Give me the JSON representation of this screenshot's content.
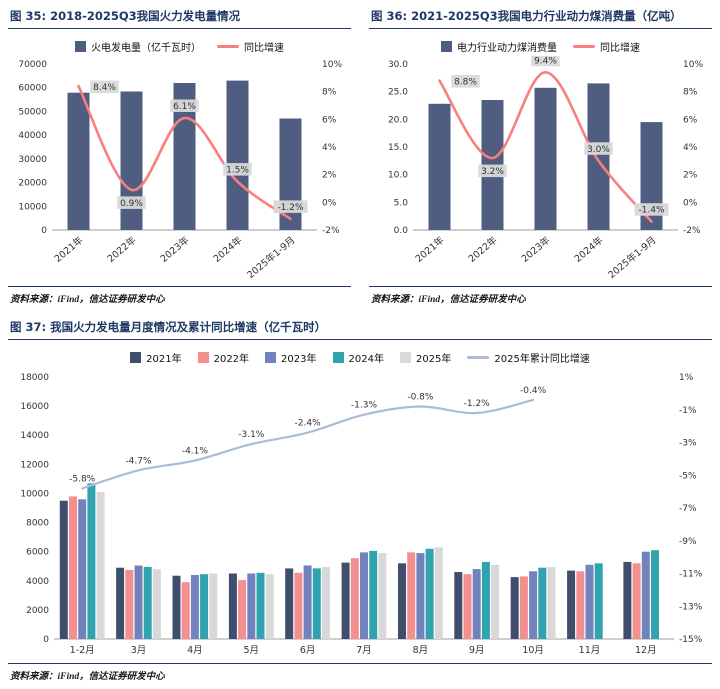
{
  "theme": {
    "title_color": "#1f3864",
    "rule_color": "#1f3864",
    "axis_text_color": "#333333",
    "value_label_bg": "#d9d9d9",
    "baseline_color": "#7f7f7f"
  },
  "panels": [
    {
      "id": "fig35",
      "title": "图 35: 2018-2025Q3我国火力发电量情况",
      "source": "资料来源：iFind，信达证券研发中心"
    },
    {
      "id": "fig36",
      "title": "图 36: 2021-2025Q3我国电力行业动力煤消费量（亿吨）",
      "source": "资料来源：iFind，信达证券研发中心"
    },
    {
      "id": "fig37",
      "title": "图 37: 我国火力发电量月度情况及累计同比增速（亿千瓦时）",
      "source": "资料来源：iFind，信达证券研发中心"
    }
  ],
  "chart_data": [
    {
      "id": "fig35",
      "type": "bar",
      "title": "2018-2025Q3我国火力发电量情况",
      "categories": [
        "2021年",
        "2022年",
        "2023年",
        "2024年",
        "2025年1-9月"
      ],
      "series": [
        {
          "name": "火电发电量（亿千瓦时）",
          "type": "bar",
          "axis": "left",
          "color": "#4f5d80",
          "values": [
            57900,
            58400,
            62000,
            63000,
            47000
          ]
        }
      ],
      "line_series": [
        {
          "name": "同比增速",
          "type": "line",
          "axis": "right",
          "color": "#f97f7f",
          "values": [
            8.4,
            0.9,
            6.1,
            1.5,
            -1.2
          ],
          "labels": [
            "8.4%",
            "0.9%",
            "6.1%",
            "1.5%",
            "-1.2%"
          ],
          "label_bg": true
        }
      ],
      "left_axis": {
        "min": 0,
        "max": 70000,
        "tick_values": [
          0,
          10000,
          20000,
          30000,
          40000,
          50000,
          60000,
          70000
        ],
        "tick_labels": [
          "0",
          "10000",
          "20000",
          "30000",
          "40000",
          "50000",
          "60000",
          "70000"
        ]
      },
      "right_axis": {
        "min": -2,
        "max": 10,
        "tick_values": [
          -2,
          0,
          2,
          4,
          6,
          8,
          10
        ],
        "tick_labels": [
          "-2%",
          "0%",
          "2%",
          "4%",
          "6%",
          "8%",
          "10%"
        ]
      },
      "label_mode": "auto",
      "grid": false,
      "legend_position": "top"
    },
    {
      "id": "fig36",
      "type": "bar",
      "title": "2021-2025Q3我国电力行业动力煤消费量（亿吨）",
      "categories": [
        "2021年",
        "2022年",
        "2023年",
        "2024年",
        "2025年1-9月"
      ],
      "series": [
        {
          "name": "电力行业动力煤消费量",
          "type": "bar",
          "axis": "left",
          "color": "#4f5d80",
          "values": [
            22.8,
            23.5,
            25.7,
            26.5,
            19.5
          ]
        }
      ],
      "line_series": [
        {
          "name": "同比增速",
          "type": "line",
          "axis": "right",
          "color": "#f97f7f",
          "values": [
            8.8,
            3.2,
            9.4,
            3.0,
            -1.4
          ],
          "labels": [
            "8.8%",
            "3.2%",
            "9.4%",
            "3.0%",
            "-1.4%"
          ],
          "label_bg": true
        }
      ],
      "left_axis": {
        "min": 0,
        "max": 30,
        "tick_values": [
          0,
          5,
          10,
          15,
          20,
          25,
          30
        ],
        "tick_labels": [
          "0.0",
          "5.0",
          "10.0",
          "15.0",
          "20.0",
          "25.0",
          "30.0"
        ]
      },
      "right_axis": {
        "min": -2,
        "max": 10,
        "tick_values": [
          -2,
          0,
          2,
          4,
          6,
          8,
          10
        ],
        "tick_labels": [
          "-2%",
          "0%",
          "2%",
          "4%",
          "6%",
          "8%",
          "10%"
        ]
      },
      "label_mode": "auto",
      "grid": false,
      "legend_position": "top"
    },
    {
      "id": "fig37",
      "type": "bar",
      "title": "我国火力发电量月度情况及累计同比增速（亿千瓦时）",
      "categories": [
        "1-2月",
        "3月",
        "4月",
        "5月",
        "6月",
        "7月",
        "8月",
        "9月",
        "10月",
        "11月",
        "12月"
      ],
      "series": [
        {
          "name": "2021年",
          "type": "bar",
          "axis": "left",
          "color": "#3f4e6d",
          "values": [
            9500,
            4900,
            4350,
            4500,
            4850,
            5250,
            5200,
            4600,
            4250,
            4700,
            5300
          ]
        },
        {
          "name": "2022年",
          "type": "bar",
          "axis": "left",
          "color": "#f48f8f",
          "values": [
            9800,
            4750,
            3900,
            4050,
            4550,
            5550,
            5950,
            4450,
            4300,
            4650,
            5200
          ]
        },
        {
          "name": "2023年",
          "type": "bar",
          "axis": "left",
          "color": "#7282bd",
          "values": [
            9600,
            5050,
            4400,
            4500,
            5050,
            5950,
            5900,
            4800,
            4650,
            5100,
            6000
          ]
        },
        {
          "name": "2024年",
          "type": "bar",
          "axis": "left",
          "color": "#2fa3ae",
          "values": [
            10700,
            4950,
            4450,
            4550,
            4850,
            6050,
            6200,
            5300,
            4900,
            5200,
            6100
          ]
        },
        {
          "name": "2025年",
          "type": "bar",
          "axis": "left",
          "color": "#d9d9d9",
          "values": [
            10100,
            4800,
            4500,
            4450,
            4950,
            5900,
            6300,
            5100,
            4950,
            null,
            null
          ]
        }
      ],
      "line_series": [
        {
          "name": "2025年累计同比增速",
          "type": "line",
          "axis": "right",
          "color": "#aabdd8",
          "values": [
            -5.8,
            -4.7,
            -4.1,
            -3.1,
            -2.4,
            -1.3,
            -0.8,
            -1.2,
            -0.4,
            null,
            null
          ],
          "labels": [
            "-5.8%",
            "-4.7%",
            "-4.1%",
            "-3.1%",
            "-2.4%",
            "-1.3%",
            "-0.8%",
            "-1.2%",
            "-0.4%",
            null,
            null
          ],
          "label_bg": false
        }
      ],
      "left_axis": {
        "min": 0,
        "max": 18000,
        "tick_values": [
          0,
          2000,
          4000,
          6000,
          8000,
          10000,
          12000,
          14000,
          16000,
          18000
        ],
        "tick_labels": [
          "0",
          "2000",
          "4000",
          "6000",
          "8000",
          "10000",
          "12000",
          "14000",
          "16000",
          "18000"
        ]
      },
      "right_axis": {
        "min": -15,
        "max": 1,
        "tick_values": [
          1,
          -1,
          -3,
          -5,
          -7,
          -9,
          -11,
          -13,
          -15
        ],
        "tick_labels": [
          "1%",
          "-1%",
          "-3%",
          "-5%",
          "-7%",
          "-9%",
          "-11%",
          "-13%",
          "-15%"
        ]
      },
      "label_mode": "above",
      "grid": false,
      "legend_position": "top"
    }
  ]
}
